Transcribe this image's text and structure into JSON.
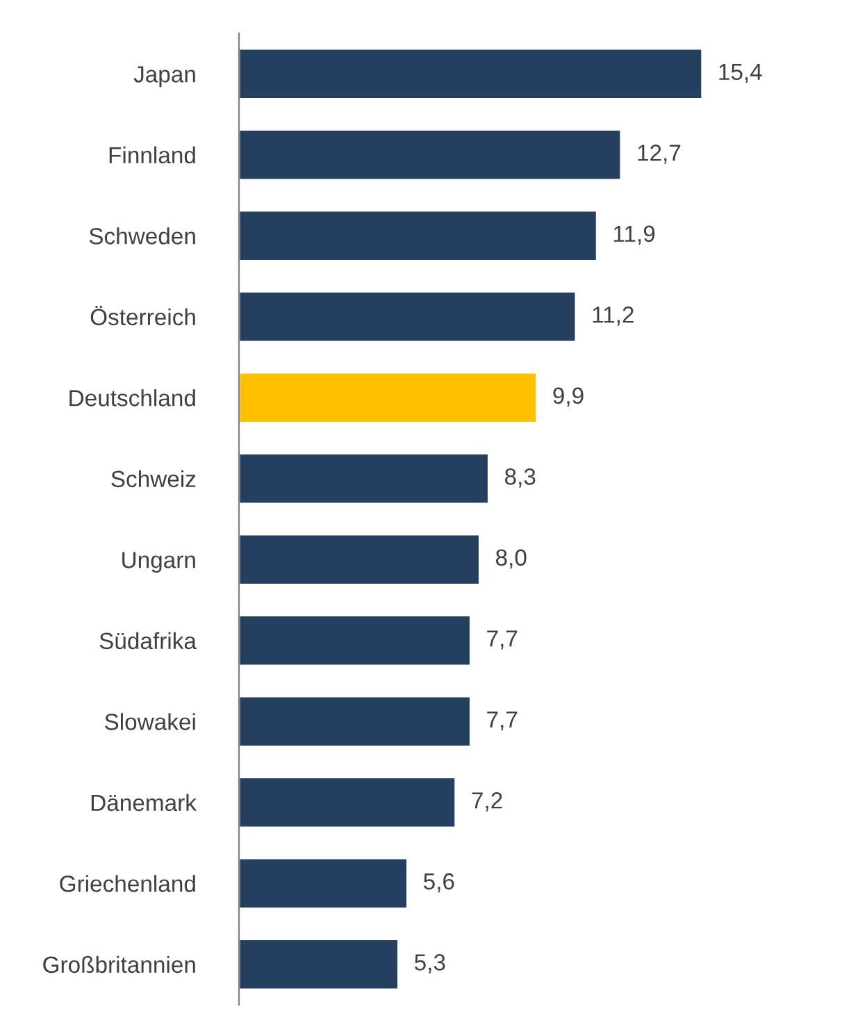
{
  "chart_data": {
    "type": "bar",
    "orientation": "horizontal",
    "categories": [
      "Japan",
      "Finnland",
      "Schweden",
      "Österreich",
      "Deutschland",
      "Schweiz",
      "Ungarn",
      "Südafrika",
      "Slowakei",
      "Dänemark",
      "Griechenland",
      "Großbritannien"
    ],
    "values": [
      15.4,
      12.7,
      11.9,
      11.2,
      9.9,
      8.3,
      8.0,
      7.7,
      7.7,
      7.2,
      5.6,
      5.3
    ],
    "value_labels": [
      "15,4",
      "12,7",
      "11,9",
      "11,2",
      "9,9",
      "8,3",
      "8,0",
      "7,7",
      "7,7",
      "7,2",
      "5,6",
      "5,3"
    ],
    "colors": [
      "#243f60",
      "#243f60",
      "#243f60",
      "#243f60",
      "#ffc000",
      "#243f60",
      "#243f60",
      "#243f60",
      "#243f60",
      "#243f60",
      "#243f60",
      "#243f60"
    ],
    "grid": false,
    "legend": false
  }
}
